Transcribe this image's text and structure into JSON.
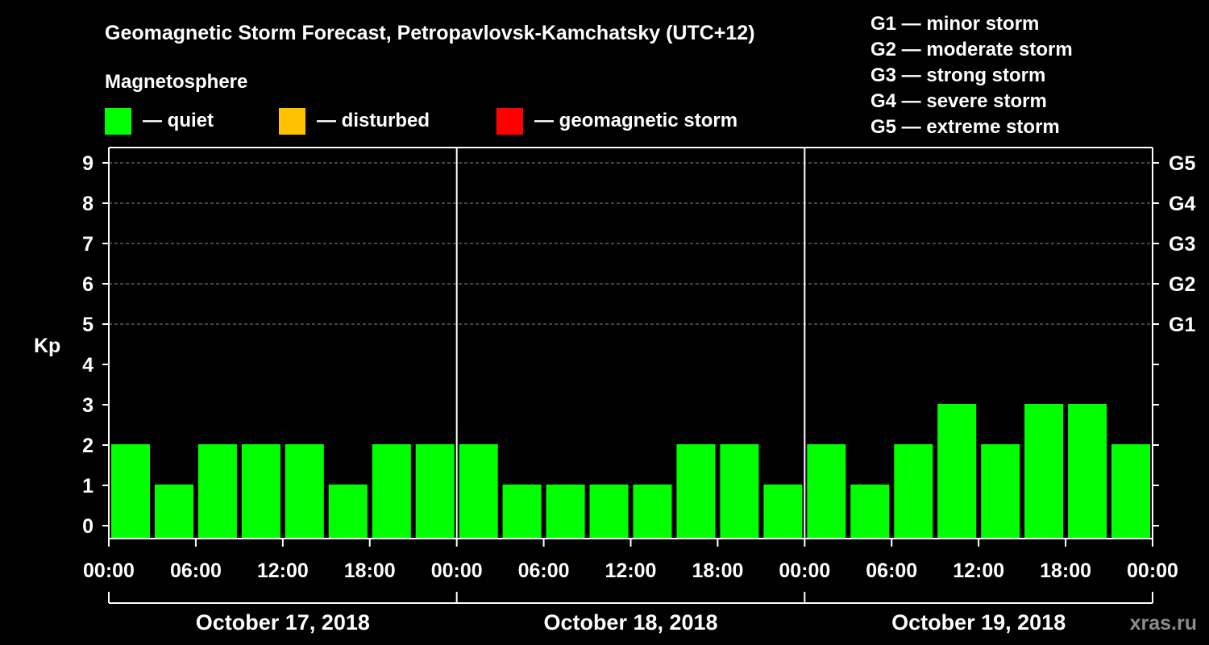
{
  "chart_data": {
    "type": "bar",
    "title": "Geomagnetic Storm Forecast, Petropavlovsk-Kamchatsky (UTC+12)",
    "subtitle": "Magnetosphere",
    "ylabel": "Kp",
    "ylim": [
      0,
      9
    ],
    "y_ticks": [
      "0",
      "1",
      "2",
      "3",
      "4",
      "5",
      "6",
      "7",
      "8",
      "9"
    ],
    "right_ticks": [
      {
        "kp": 5,
        "label": "G1"
      },
      {
        "kp": 6,
        "label": "G2"
      },
      {
        "kp": 7,
        "label": "G3"
      },
      {
        "kp": 8,
        "label": "G4"
      },
      {
        "kp": 9,
        "label": "G5"
      }
    ],
    "x_ticks": [
      "00:00",
      "06:00",
      "12:00",
      "18:00",
      "00:00",
      "06:00",
      "12:00",
      "18:00",
      "00:00",
      "06:00",
      "12:00",
      "18:00",
      "00:00"
    ],
    "days": [
      {
        "label": "October 17, 2018",
        "values": [
          2,
          1,
          2,
          2,
          2,
          1,
          2,
          2
        ]
      },
      {
        "label": "October 18, 2018",
        "values": [
          2,
          1,
          1,
          1,
          1,
          2,
          2,
          1
        ]
      },
      {
        "label": "October 19, 2018",
        "values": [
          2,
          1,
          2,
          3,
          2,
          3,
          3,
          2
        ]
      }
    ],
    "legend": [
      {
        "label": "— quiet",
        "color": "#00ff00"
      },
      {
        "label": "— disturbed",
        "color": "#ffc000"
      },
      {
        "label": "— geomagnetic storm",
        "color": "#ff0000"
      }
    ],
    "storm_scale": [
      "G1 — minor storm",
      "G2 — moderate storm",
      "G3 — strong storm",
      "G4 — severe storm",
      "G5 — extreme storm"
    ],
    "watermark": "xras.ru",
    "colors": {
      "background": "#000000",
      "quiet": "#00ff00",
      "grid": "#888888",
      "axis": "#ffffff",
      "watermark": "#8c8c8c"
    }
  }
}
